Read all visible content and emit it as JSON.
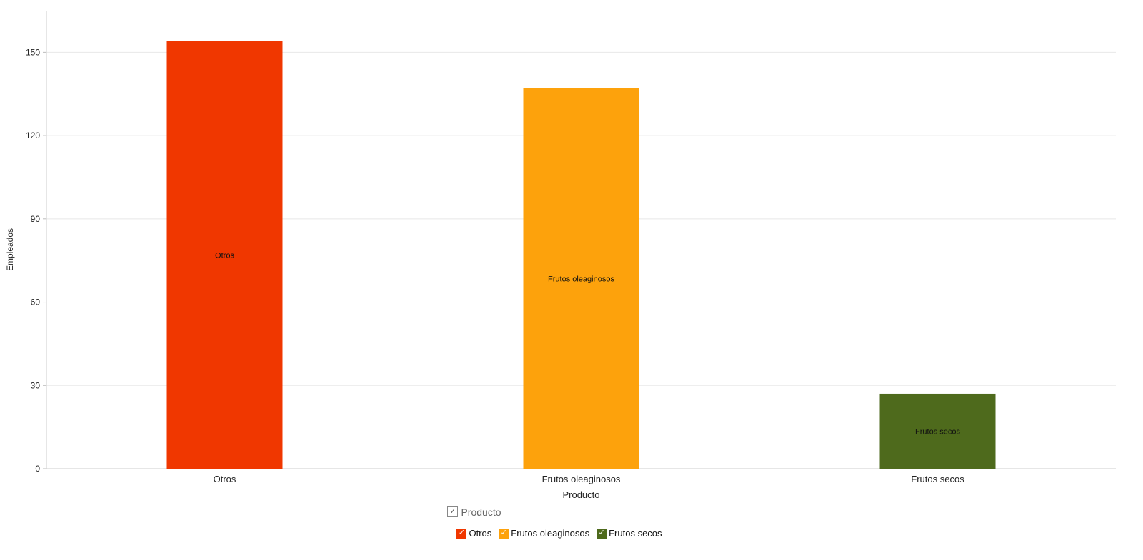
{
  "chart_data": {
    "type": "bar",
    "categories": [
      "Otros",
      "Frutos oleaginosos",
      "Frutos secos"
    ],
    "values": [
      154,
      137,
      27
    ],
    "colors": [
      "#f03700",
      "#fda20c",
      "#4e6a1c"
    ],
    "data_labels": [
      "Otros",
      "Frutos oleaginosos",
      "Frutos secos"
    ],
    "xlabel": "Producto",
    "ylabel": "Empleados",
    "ylim": [
      0,
      165
    ],
    "yticks": [
      0,
      30,
      60,
      90,
      120,
      150
    ],
    "ytick_labels": [
      "0",
      "30",
      "60",
      "90",
      "120",
      "150"
    ],
    "grid": true,
    "legend_placement": "bottom-center"
  },
  "legend": {
    "title": "Producto",
    "title_check": "✓",
    "items": [
      {
        "label": "Otros",
        "color": "#f03700",
        "check": "✓"
      },
      {
        "label": "Frutos oleaginosos",
        "color": "#fda20c",
        "check": "✓"
      },
      {
        "label": "Frutos secos",
        "color": "#4e6a1c",
        "check": "✓"
      }
    ]
  }
}
